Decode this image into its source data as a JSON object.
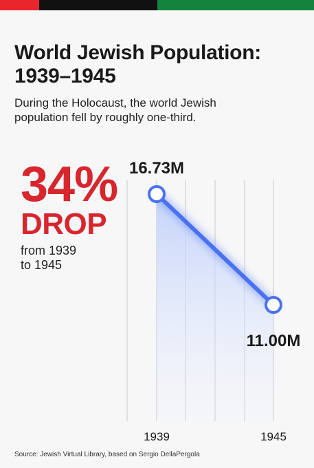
{
  "header": {
    "title_line1": "World Jewish Population:",
    "title_line2": "1939–1945",
    "subtitle_line1": "During the Holocaust, the world Jewish",
    "subtitle_line2": "population fell by roughly one-third."
  },
  "highlight": {
    "percent": "34%",
    "word": "DROP",
    "note_line1": "from 1939",
    "note_line2": "to 1945"
  },
  "chart_data": {
    "type": "line",
    "title": "World Jewish Population: 1939–1945",
    "x": [
      "1939",
      "1945"
    ],
    "series": [
      {
        "values": [
          16.73,
          11.0
        ],
        "labels": [
          "16.73M",
          "11.00M"
        ]
      }
    ],
    "ylim": [
      0,
      16.73
    ],
    "grid": "vertical",
    "legend": "none",
    "colors": {
      "line": "#4a72f0",
      "fill": "#c9d8fb",
      "marker_fill": "#ffffff",
      "gridline": "#c8c8cc"
    }
  },
  "footer": {
    "source": "Source: Jewish Virtual Library, based on Sergio DellaPergola"
  },
  "colors": {
    "accent_red": "#d8262e",
    "bar_red": "#e8262b",
    "bar_black": "#111111",
    "bar_green": "#13833d"
  }
}
